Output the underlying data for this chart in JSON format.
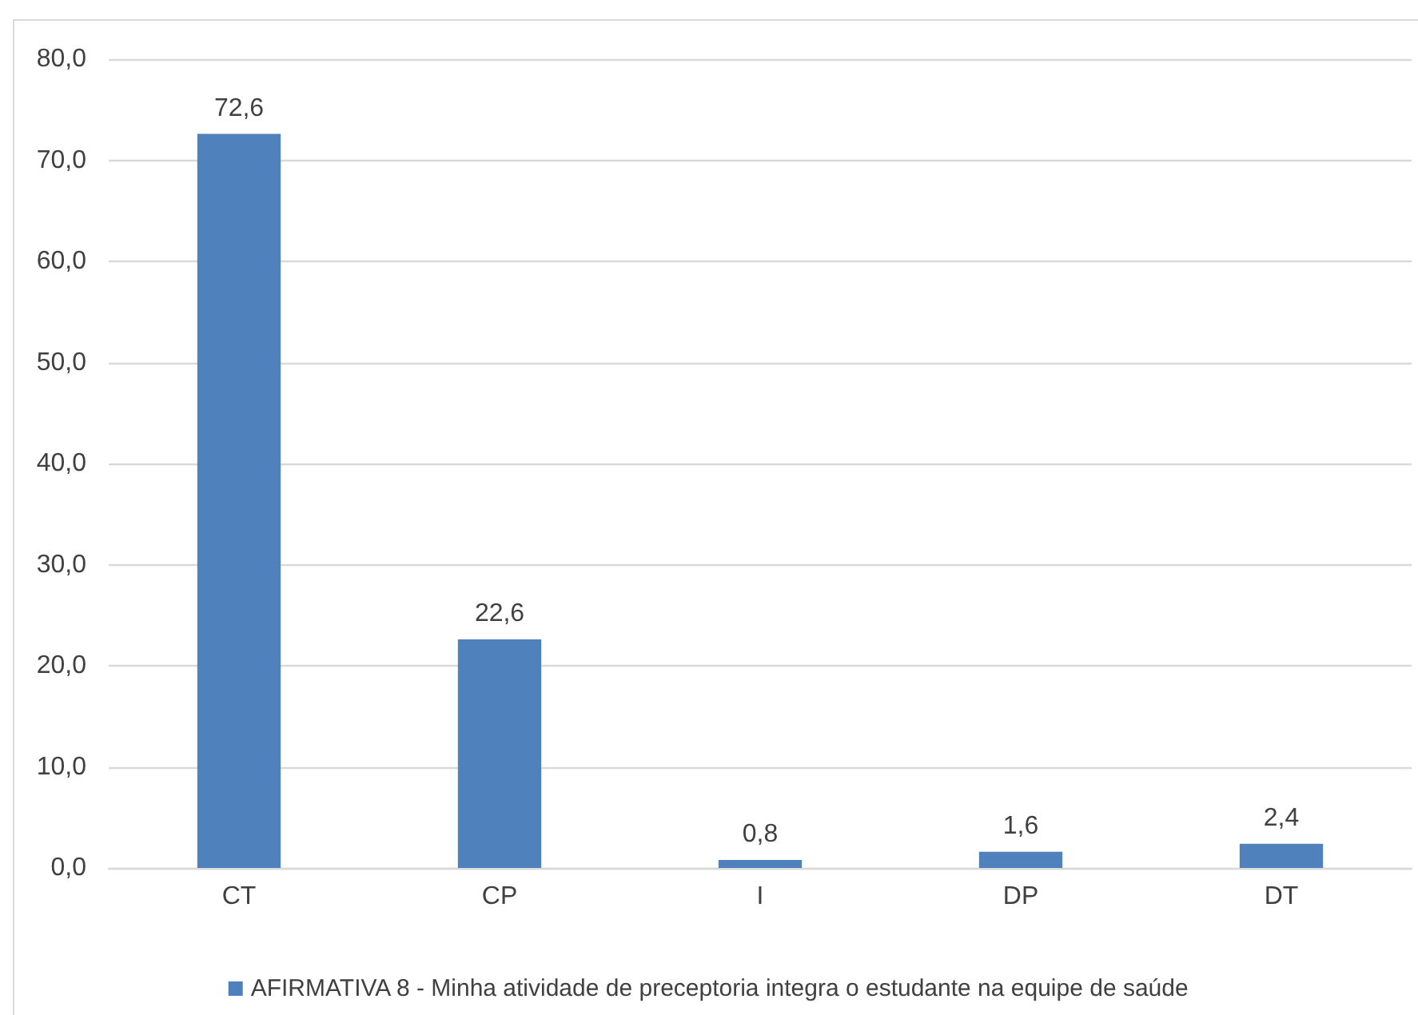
{
  "chart_data": {
    "type": "bar",
    "categories": [
      "CT",
      "CP",
      "I",
      "DP",
      "DT"
    ],
    "series": [
      {
        "name": "AFIRMATIVA 8 - Minha atividade de preceptoria integra o estudante na equipe de saúde",
        "color": "#4f81bd",
        "values": [
          72.6,
          22.6,
          0.8,
          1.6,
          2.4
        ],
        "value_labels": [
          "72,6",
          "22,6",
          "0,8",
          "1,6",
          "2,4"
        ]
      }
    ],
    "ylim": [
      0,
      80
    ],
    "yticks": [
      {
        "value": 0,
        "label": "0,0"
      },
      {
        "value": 10,
        "label": "10,0"
      },
      {
        "value": 20,
        "label": "20,0"
      },
      {
        "value": 30,
        "label": "30,0"
      },
      {
        "value": 40,
        "label": "40,0"
      },
      {
        "value": 50,
        "label": "50,0"
      },
      {
        "value": 60,
        "label": "60,0"
      },
      {
        "value": 70,
        "label": "70,0"
      },
      {
        "value": 80,
        "label": "80,0"
      }
    ],
    "grid": "y",
    "legend": "bottom"
  }
}
